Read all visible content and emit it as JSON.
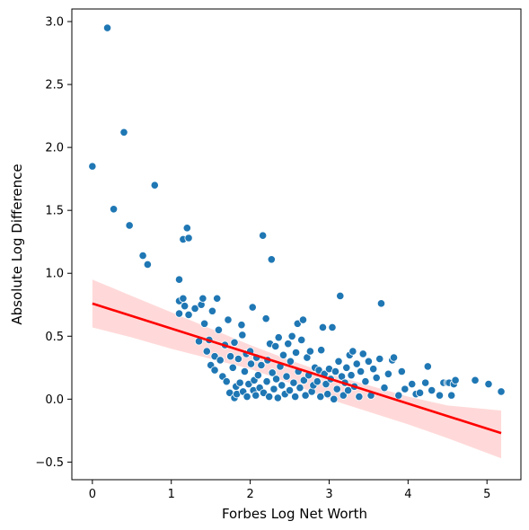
{
  "chart_data": {
    "type": "scatter",
    "title": "",
    "xlabel": "Forbes Log Net Worth",
    "ylabel": "Absolute Log Difference",
    "xlim": [
      -0.26,
      5.43
    ],
    "ylim": [
      -0.64,
      3.1
    ],
    "xticks": [
      0,
      1,
      2,
      3,
      4,
      5
    ],
    "xtick_labels": [
      "0",
      "1",
      "2",
      "3",
      "4",
      "5"
    ],
    "yticks": [
      -0.5,
      0.0,
      0.5,
      1.0,
      1.5,
      2.0,
      2.5,
      3.0
    ],
    "ytick_labels": [
      "−0.5",
      "0.0",
      "0.5",
      "1.0",
      "1.5",
      "2.0",
      "2.5",
      "3.0"
    ],
    "grid": false,
    "colors": {
      "points": "#1f77b4",
      "point_edge": "#ffffff",
      "regression": "#ff0000",
      "band": "#ffcccc"
    },
    "regression": {
      "x": [
        0,
        5.18
      ],
      "y": [
        0.76,
        -0.27
      ]
    },
    "confidence_band": {
      "x": [
        0,
        0.5,
        1.0,
        1.5,
        2.0,
        2.5,
        3.0,
        3.5,
        4.0,
        4.5,
        5.18
      ],
      "upper": [
        0.95,
        0.82,
        0.69,
        0.56,
        0.43,
        0.31,
        0.2,
        0.11,
        0.02,
        -0.05,
        -0.09
      ],
      "lower": [
        0.57,
        0.49,
        0.4,
        0.32,
        0.24,
        0.13,
        0.0,
        -0.1,
        -0.2,
        -0.31,
        -0.47
      ]
    },
    "points": [
      [
        0.0,
        1.85
      ],
      [
        0.19,
        2.95
      ],
      [
        0.27,
        1.51
      ],
      [
        0.4,
        2.12
      ],
      [
        0.47,
        1.38
      ],
      [
        0.64,
        1.14
      ],
      [
        0.7,
        1.07
      ],
      [
        0.79,
        1.7
      ],
      [
        1.1,
        0.95
      ],
      [
        1.1,
        0.78
      ],
      [
        1.1,
        0.68
      ],
      [
        1.15,
        0.8
      ],
      [
        1.15,
        1.27
      ],
      [
        1.17,
        0.74
      ],
      [
        1.2,
        1.36
      ],
      [
        1.22,
        1.28
      ],
      [
        1.22,
        0.67
      ],
      [
        1.3,
        0.72
      ],
      [
        1.35,
        0.46
      ],
      [
        1.38,
        0.75
      ],
      [
        1.4,
        0.8
      ],
      [
        1.42,
        0.6
      ],
      [
        1.45,
        0.38
      ],
      [
        1.48,
        0.47
      ],
      [
        1.5,
        0.27
      ],
      [
        1.52,
        0.7
      ],
      [
        1.55,
        0.34
      ],
      [
        1.55,
        0.23
      ],
      [
        1.58,
        0.8
      ],
      [
        1.6,
        0.55
      ],
      [
        1.62,
        0.31
      ],
      [
        1.65,
        0.18
      ],
      [
        1.68,
        0.43
      ],
      [
        1.7,
        0.14
      ],
      [
        1.72,
        0.63
      ],
      [
        1.74,
        0.05
      ],
      [
        1.75,
        0.34
      ],
      [
        1.78,
        0.25
      ],
      [
        1.8,
        0.45
      ],
      [
        1.8,
        0.01
      ],
      [
        1.82,
        0.1
      ],
      [
        1.83,
        0.04
      ],
      [
        1.85,
        0.32
      ],
      [
        1.87,
        0.13
      ],
      [
        1.89,
        0.59
      ],
      [
        1.9,
        0.51
      ],
      [
        1.91,
        0.06
      ],
      [
        1.93,
        0.22
      ],
      [
        1.95,
        0.36
      ],
      [
        1.96,
        0.02
      ],
      [
        1.98,
        0.12
      ],
      [
        2.0,
        0.38
      ],
      [
        2.01,
        0.28
      ],
      [
        2.03,
        0.73
      ],
      [
        2.04,
        0.07
      ],
      [
        2.05,
        0.15
      ],
      [
        2.07,
        0.03
      ],
      [
        2.08,
        0.33
      ],
      [
        2.1,
        0.19
      ],
      [
        2.12,
        0.09
      ],
      [
        2.14,
        0.27
      ],
      [
        2.16,
        1.3
      ],
      [
        2.17,
        0.05
      ],
      [
        2.2,
        0.64
      ],
      [
        2.21,
        0.14
      ],
      [
        2.22,
        0.31
      ],
      [
        2.24,
        0.02
      ],
      [
        2.25,
        0.44
      ],
      [
        2.27,
        1.11
      ],
      [
        2.28,
        0.21
      ],
      [
        2.3,
        0.08
      ],
      [
        2.32,
        0.42
      ],
      [
        2.33,
        0.16
      ],
      [
        2.35,
        0.01
      ],
      [
        2.36,
        0.49
      ],
      [
        2.38,
        0.26
      ],
      [
        2.4,
        0.11
      ],
      [
        2.42,
        0.35
      ],
      [
        2.44,
        0.04
      ],
      [
        2.46,
        0.18
      ],
      [
        2.48,
        0.44
      ],
      [
        2.5,
        0.07
      ],
      [
        2.51,
        0.3
      ],
      [
        2.53,
        0.5
      ],
      [
        2.55,
        0.13
      ],
      [
        2.57,
        0.02
      ],
      [
        2.58,
        0.37
      ],
      [
        2.6,
        0.6
      ],
      [
        2.61,
        0.22
      ],
      [
        2.63,
        0.09
      ],
      [
        2.65,
        0.47
      ],
      [
        2.67,
        0.63
      ],
      [
        2.68,
        0.15
      ],
      [
        2.7,
        0.03
      ],
      [
        2.72,
        0.33
      ],
      [
        2.74,
        0.19
      ],
      [
        2.76,
        0.38
      ],
      [
        2.78,
        0.06
      ],
      [
        2.8,
        0.11
      ],
      [
        2.82,
        0.25
      ],
      [
        2.85,
        0.14
      ],
      [
        2.87,
        0.23
      ],
      [
        2.89,
        0.02
      ],
      [
        2.9,
        0.39
      ],
      [
        2.92,
        0.57
      ],
      [
        2.94,
        0.2
      ],
      [
        2.96,
        0.12
      ],
      [
        2.98,
        0.04
      ],
      [
        3.0,
        0.24
      ],
      [
        3.02,
        0.16
      ],
      [
        3.04,
        0.57
      ],
      [
        3.06,
        0.0
      ],
      [
        3.08,
        0.22
      ],
      [
        3.1,
        0.08
      ],
      [
        3.12,
        0.3
      ],
      [
        3.14,
        0.82
      ],
      [
        3.16,
        0.18
      ],
      [
        3.18,
        0.03
      ],
      [
        3.2,
        0.13
      ],
      [
        3.22,
        0.25
      ],
      [
        3.24,
        0.07
      ],
      [
        3.26,
        0.35
      ],
      [
        3.28,
        0.19
      ],
      [
        3.3,
        0.38
      ],
      [
        3.32,
        0.1
      ],
      [
        3.35,
        0.28
      ],
      [
        3.38,
        0.02
      ],
      [
        3.4,
        0.22
      ],
      [
        3.43,
        0.36
      ],
      [
        3.46,
        0.14
      ],
      [
        3.5,
        0.3
      ],
      [
        3.53,
        0.03
      ],
      [
        3.56,
        0.24
      ],
      [
        3.6,
        0.17
      ],
      [
        3.64,
        0.32
      ],
      [
        3.66,
        0.76
      ],
      [
        3.7,
        0.09
      ],
      [
        3.75,
        0.2
      ],
      [
        3.8,
        0.31
      ],
      [
        3.82,
        0.33
      ],
      [
        3.88,
        0.03
      ],
      [
        3.92,
        0.22
      ],
      [
        3.96,
        0.08
      ],
      [
        4.05,
        0.12
      ],
      [
        4.1,
        0.04
      ],
      [
        4.15,
        0.05
      ],
      [
        4.22,
        0.13
      ],
      [
        4.25,
        0.26
      ],
      [
        4.3,
        0.07
      ],
      [
        4.4,
        0.03
      ],
      [
        4.45,
        0.13
      ],
      [
        4.5,
        0.13
      ],
      [
        4.52,
        0.13
      ],
      [
        4.55,
        0.03
      ],
      [
        4.58,
        0.12
      ],
      [
        4.6,
        0.15
      ],
      [
        4.85,
        0.15
      ],
      [
        5.02,
        0.12
      ],
      [
        5.18,
        0.06
      ]
    ]
  }
}
